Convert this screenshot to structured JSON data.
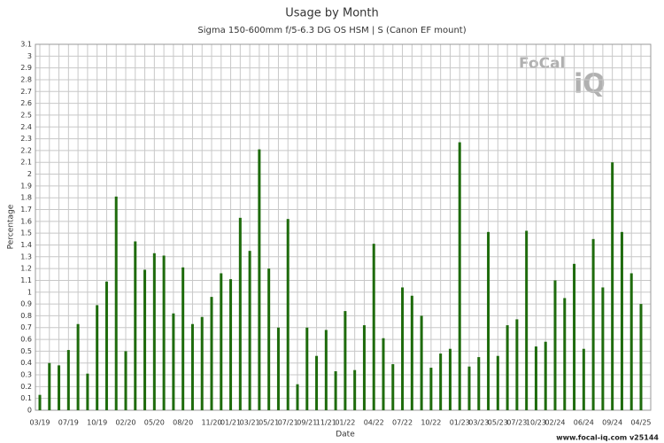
{
  "chart_data": {
    "type": "bar",
    "title": "Usage by Month",
    "subtitle": "Sigma 150-600mm f/5-6.3 DG OS HSM | S (Canon EF mount)",
    "x_label": "Date",
    "y_label": "Percentage",
    "logo": [
      "FoCal",
      "iQ"
    ],
    "footer": "www.focal-iq.com  v25144",
    "color": "#1e6b0c",
    "grid": true,
    "categories": [
      "03/19",
      null,
      null,
      "07/19",
      null,
      null,
      "10/19",
      null,
      null,
      "02/20",
      null,
      null,
      "05/20",
      null,
      null,
      "08/20",
      null,
      null,
      "11/20",
      null,
      "01/21",
      null,
      "03/21",
      null,
      "05/21",
      null,
      "07/21",
      null,
      "09/21",
      null,
      "11/21",
      null,
      "01/22",
      null,
      null,
      "04/22",
      null,
      null,
      "07/22",
      null,
      null,
      "10/22",
      null,
      null,
      "01/23",
      null,
      "03/23",
      null,
      "05/23",
      null,
      "07/23",
      null,
      "10/23",
      null,
      "02/24",
      null,
      null,
      "06/24",
      null,
      null,
      "09/24",
      null,
      null,
      "04/25"
    ],
    "values": [
      0.13,
      0.4,
      0.38,
      0.51,
      0.73,
      0.31,
      0.89,
      1.09,
      1.81,
      0.5,
      1.43,
      1.19,
      1.33,
      1.31,
      0.82,
      1.21,
      0.73,
      0.79,
      0.96,
      1.16,
      1.11,
      1.63,
      1.35,
      2.21,
      1.2,
      0.7,
      1.62,
      0.22,
      0.7,
      0.46,
      0.68,
      0.33,
      0.84,
      0.34,
      0.72,
      1.41,
      0.61,
      0.39,
      1.04,
      0.97,
      0.8,
      0.36,
      0.48,
      0.52,
      2.27,
      0.37,
      0.45,
      1.51,
      0.46,
      0.72,
      0.77,
      1.52,
      0.54,
      0.58,
      1.1,
      0.95,
      1.24,
      0.52,
      1.45,
      1.04,
      2.1,
      1.51,
      1.16,
      0.9
    ],
    "ylim": [
      0,
      3.1
    ],
    "yticks": [
      0,
      0.1,
      0.2,
      0.3,
      0.4,
      0.5,
      0.6,
      0.7,
      0.8,
      0.9,
      1,
      1.1,
      1.2,
      1.3,
      1.4,
      1.5,
      1.6,
      1.7,
      1.8,
      1.9,
      2,
      2.1,
      2.2,
      2.3,
      2.4,
      2.5,
      2.6,
      2.7,
      2.8,
      2.9,
      3,
      3.1
    ]
  }
}
